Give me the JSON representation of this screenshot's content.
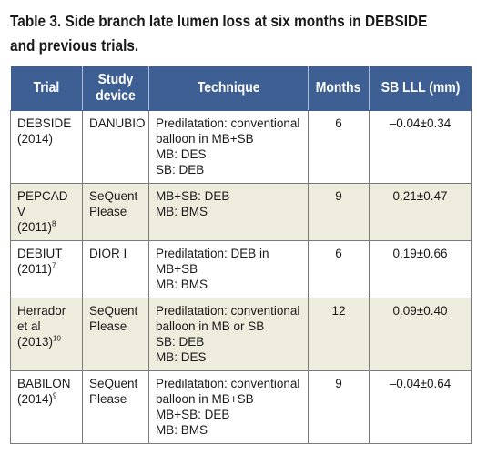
{
  "caption": {
    "line1": "Table 3. Side branch late lumen loss at six months in DEBSIDE",
    "line2": "and previous trials."
  },
  "columns": [
    "Trial",
    "Study device",
    "Technique",
    "Months",
    "SB LLL (mm)"
  ],
  "rows": [
    {
      "trial": "DEBSIDE\n(2014)",
      "trial_ref": "",
      "device": "DANUBIO",
      "technique": "Predilatation: conventional\nballoon in MB+SB\nMB: DES\nSB: DEB",
      "months": "6",
      "sb_lll": "–0.04±0.34"
    },
    {
      "trial": "PEPCAD V\n(2011)",
      "trial_ref": "8",
      "device": "SeQuent\nPlease",
      "technique": "MB+SB: DEB\nMB: BMS",
      "months": "9",
      "sb_lll": "0.21±0.47"
    },
    {
      "trial": "DEBIUT\n(2011)",
      "trial_ref": "7",
      "device": "DIOR I",
      "technique": "Predilatation: DEB in\nMB+SB\nMB: BMS",
      "months": "6",
      "sb_lll": "0.19±0.66"
    },
    {
      "trial": "Herrador\net al\n(2013)",
      "trial_ref": "10",
      "device": "SeQuent\nPlease",
      "technique": "Predilatation: conventional\nballoon in MB or SB\nSB: DEB\nMB: DES",
      "months": "12",
      "sb_lll": "0.09±0.40"
    },
    {
      "trial": "BABILON\n(2014)",
      "trial_ref": "9",
      "device": "SeQuent\nPlease",
      "technique": "Predilatation: conventional\nballoon in MB+SB\nMB+SB: DEB\nMB: BMS",
      "months": "9",
      "sb_lll": "–0.04±0.64"
    }
  ]
}
